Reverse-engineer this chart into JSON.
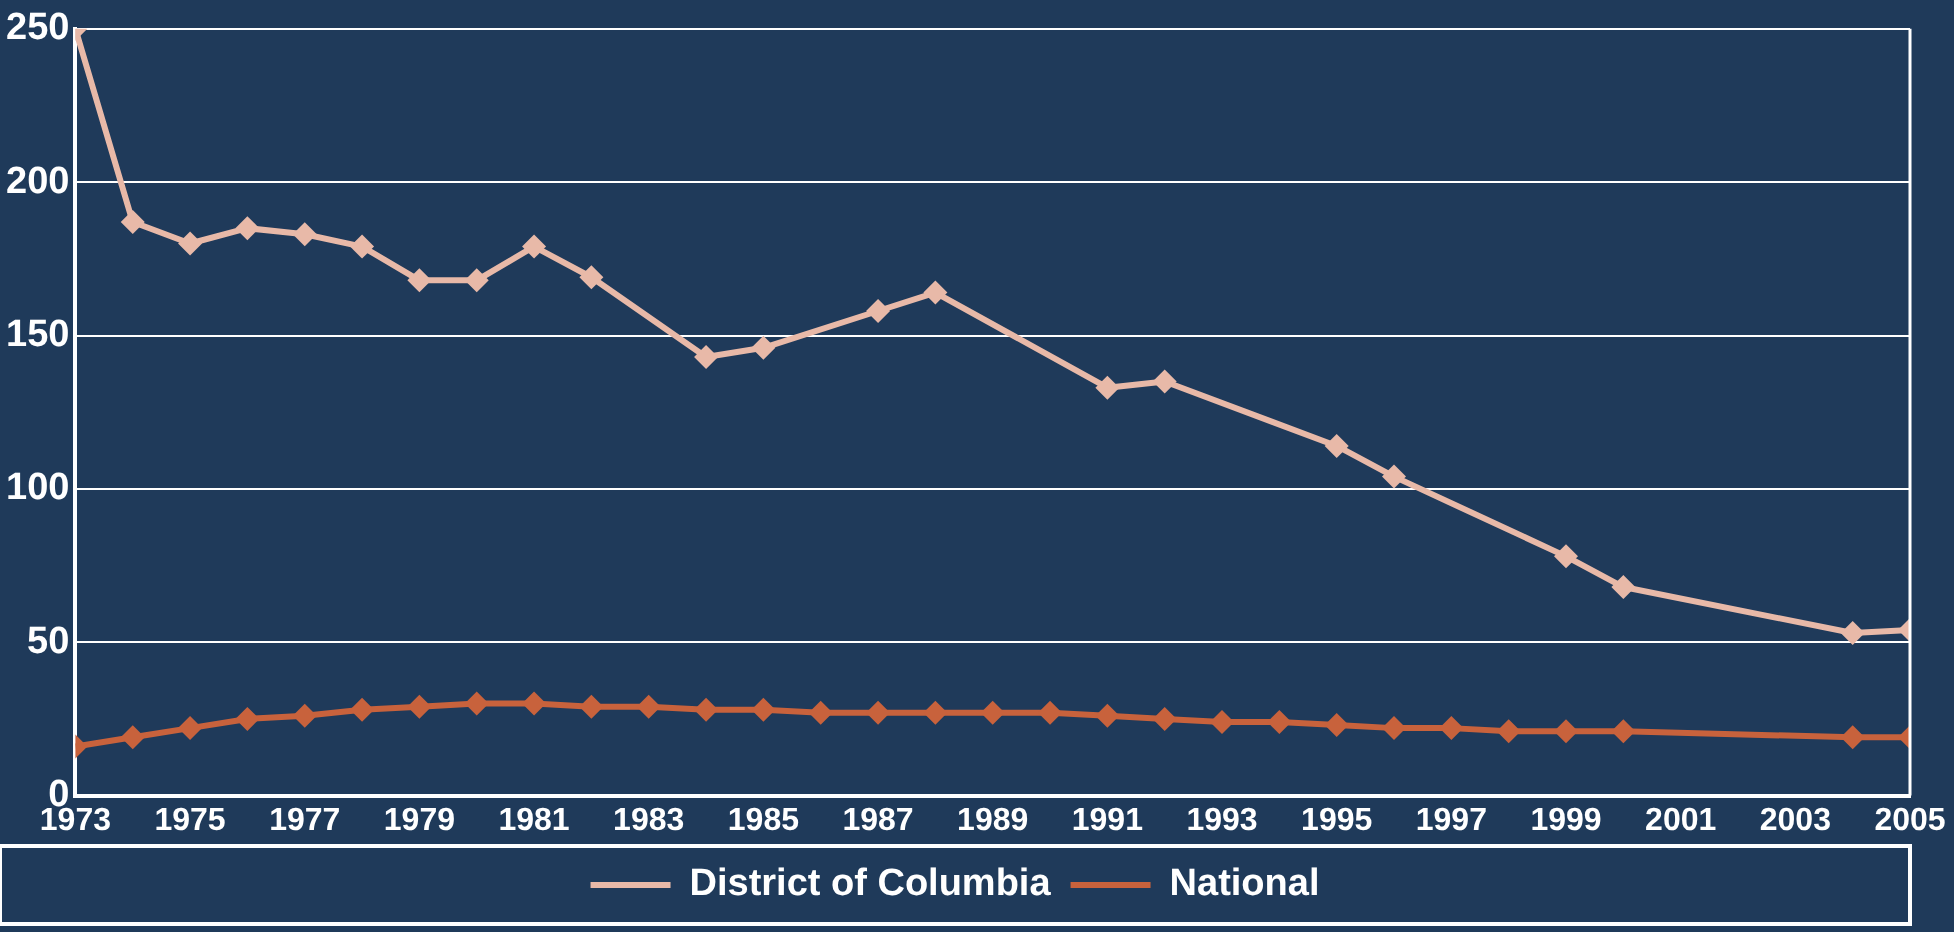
{
  "chart_data": {
    "type": "line",
    "xlim": [
      1973,
      2005
    ],
    "xticks": [
      1973,
      1975,
      1977,
      1979,
      1981,
      1983,
      1985,
      1987,
      1989,
      1991,
      1993,
      1995,
      1997,
      1999,
      2001,
      2003,
      2005
    ],
    "ylim": [
      0,
      250
    ],
    "yticks": [
      0,
      50,
      100,
      150,
      200,
      250
    ],
    "grid": "y",
    "legend": "bottom",
    "marker": "diamond",
    "line_style": "solid",
    "series": [
      {
        "name": "District of Columbia",
        "color": "#e8b9a8",
        "x": [
          1973,
          1974,
          1975,
          1976,
          1977,
          1978,
          1979,
          1980,
          1981,
          1982,
          1984,
          1985,
          1987,
          1988,
          1991,
          1992,
          1995,
          1996,
          1999,
          2000,
          2004,
          2005
        ],
        "values": [
          250,
          187,
          180,
          185,
          183,
          179,
          168,
          168,
          179,
          169,
          143,
          146,
          158,
          164,
          133,
          135,
          114,
          104,
          78,
          68,
          53,
          54
        ]
      },
      {
        "name": "National",
        "color": "#c8623c",
        "x": [
          1973,
          1974,
          1975,
          1976,
          1977,
          1978,
          1979,
          1980,
          1981,
          1982,
          1983,
          1984,
          1985,
          1986,
          1987,
          1988,
          1989,
          1990,
          1991,
          1992,
          1993,
          1994,
          1995,
          1996,
          1997,
          1998,
          1999,
          2000,
          2004,
          2005
        ],
        "values": [
          16,
          19,
          22,
          25,
          26,
          28,
          29,
          30,
          30,
          29,
          29,
          28,
          28,
          27,
          27,
          27,
          27,
          27,
          26,
          25,
          24,
          24,
          23,
          22,
          22,
          21,
          21,
          21,
          19,
          19
        ]
      }
    ]
  }
}
